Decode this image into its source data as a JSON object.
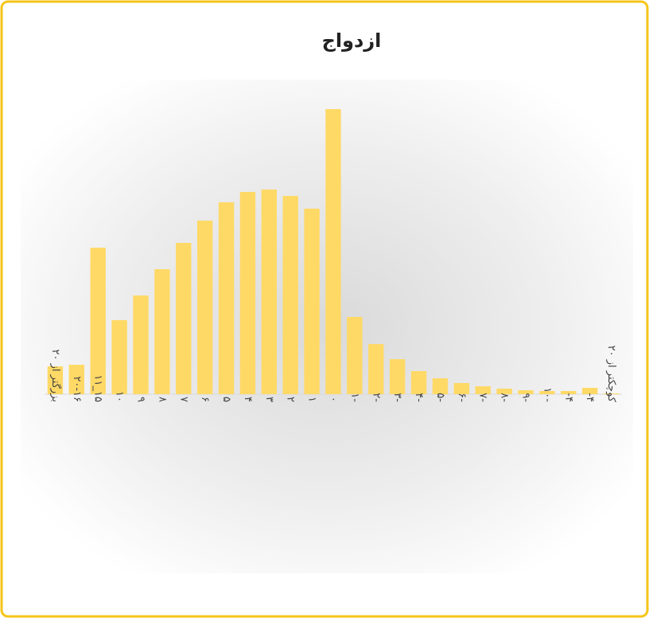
{
  "chart_data": {
    "type": "bar",
    "title": "ازدواج",
    "categories": [
      "بزرگتر از ۲۰",
      "۲۰-۱۶",
      "۱۵_۱۱",
      "۱۰",
      "۹",
      "۸",
      "۷",
      "۶",
      "۵",
      "۴",
      "۳",
      "۲",
      "۱",
      "۰",
      "-۱",
      "-۲",
      "-۳",
      "-۴",
      "-۵",
      "-۶",
      "-۷",
      "-۸",
      "-۹",
      "-۱۰",
      "۴-",
      "۴-",
      "کوچکتر از ۲۰"
    ],
    "values": [
      35,
      37,
      184,
      93,
      124,
      157,
      190,
      218,
      241,
      254,
      257,
      249,
      233,
      358,
      97,
      63,
      44,
      29,
      20,
      14,
      10,
      7,
      5,
      4,
      4,
      8,
      1
    ],
    "color": "#ffd966",
    "ylim": [
      0,
      400
    ]
  }
}
